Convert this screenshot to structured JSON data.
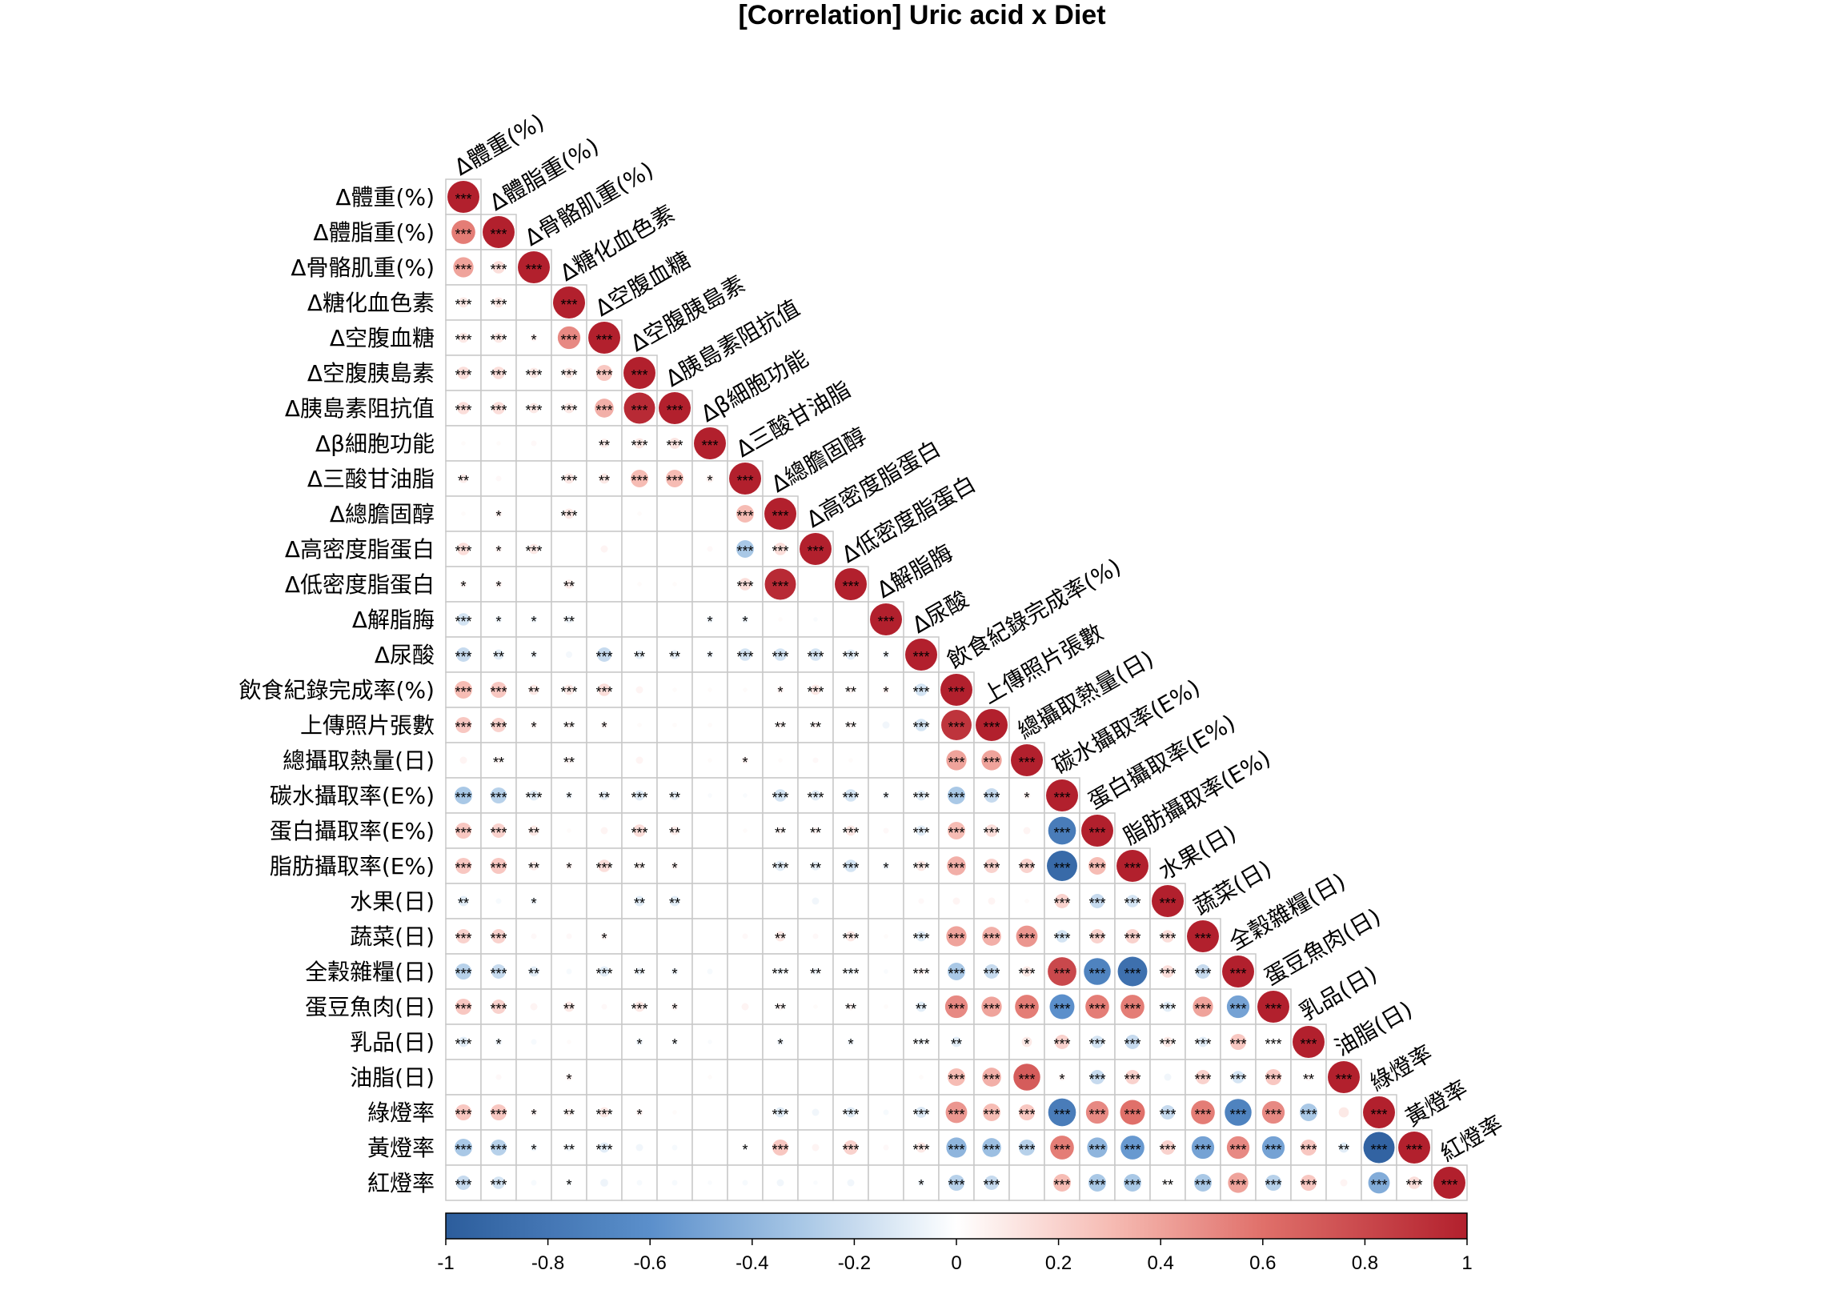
{
  "chart_data": {
    "type": "heatmap",
    "subtype": "correlation-matrix-lower-triangle",
    "title": "[Correlation] Uric acid x Diet",
    "variables": [
      "Δ體重(%)",
      "Δ體脂重(%)",
      "Δ骨骼肌重(%)",
      "Δ糖化血色素",
      "Δ空腹血糖",
      "Δ空腹胰島素",
      "Δ胰島素阻抗值",
      "Δβ細胞功能",
      "Δ三酸甘油脂",
      "Δ總膽固醇",
      "Δ高密度脂蛋白",
      "Δ低密度脂蛋白",
      "Δ解脂脢",
      "Δ尿酸",
      "飲食紀錄完成率(%)",
      "上傳照片張數",
      "總攝取熱量(日)",
      "碳水攝取率(E%)",
      "蛋白攝取率(E%)",
      "脂肪攝取率(E%)",
      "水果(日)",
      "蔬菜(日)",
      "全穀雜糧(日)",
      "蛋豆魚肉(日)",
      "乳品(日)",
      "油脂(日)",
      "綠燈率",
      "黃燈率",
      "紅燈率"
    ],
    "values": [
      [
        1.0
      ],
      [
        0.55,
        1.0
      ],
      [
        0.4,
        0.15,
        1.0
      ],
      [
        0.1,
        0.1,
        0.0,
        1.0
      ],
      [
        0.1,
        0.1,
        0.05,
        0.5,
        1.0
      ],
      [
        0.15,
        0.15,
        0.1,
        0.1,
        0.25,
        1.0
      ],
      [
        0.15,
        0.15,
        0.1,
        0.1,
        0.35,
        0.95,
        1.0
      ],
      [
        0.02,
        0.02,
        0.03,
        0.0,
        0.08,
        0.1,
        0.12,
        1.0
      ],
      [
        0.08,
        0.03,
        0.0,
        0.1,
        0.1,
        0.3,
        0.3,
        0.06,
        1.0
      ],
      [
        0.02,
        0.05,
        0.0,
        0.1,
        0.0,
        0.02,
        0.0,
        0.0,
        0.3,
        1.0
      ],
      [
        0.15,
        0.05,
        0.1,
        0.0,
        0.05,
        0.0,
        0.0,
        0.03,
        -0.3,
        0.15,
        1.0
      ],
      [
        0.05,
        0.05,
        0.0,
        0.08,
        0.0,
        0.02,
        0.02,
        0.0,
        0.15,
        0.95,
        0.0,
        1.0
      ],
      [
        -0.15,
        -0.05,
        -0.05,
        -0.06,
        0.0,
        0.0,
        0.0,
        -0.05,
        -0.05,
        0.02,
        -0.02,
        0.0,
        1.0
      ],
      [
        -0.2,
        -0.1,
        -0.05,
        -0.04,
        -0.2,
        -0.08,
        -0.08,
        -0.05,
        -0.15,
        -0.15,
        -0.15,
        -0.1,
        -0.05,
        1.0
      ],
      [
        0.3,
        0.25,
        0.1,
        0.1,
        0.15,
        0.05,
        0.02,
        0.02,
        0.02,
        0.05,
        0.1,
        0.05,
        0.05,
        -0.15,
        1.0
      ],
      [
        0.25,
        0.2,
        0.05,
        0.05,
        0.05,
        0.02,
        0.02,
        0.02,
        0.0,
        0.05,
        0.05,
        0.05,
        -0.05,
        -0.15,
        0.9,
        1.0
      ],
      [
        0.05,
        0.05,
        0.0,
        0.05,
        0.0,
        0.05,
        0.0,
        0.02,
        0.05,
        0.02,
        0.03,
        0.02,
        0.0,
        0.0,
        0.4,
        0.4,
        1.0
      ],
      [
        -0.3,
        -0.25,
        -0.1,
        -0.05,
        -0.08,
        -0.1,
        -0.08,
        -0.02,
        -0.02,
        -0.15,
        -0.1,
        -0.15,
        -0.05,
        -0.1,
        -0.3,
        -0.2,
        0.05,
        1.0
      ],
      [
        0.25,
        0.2,
        0.1,
        0.02,
        0.05,
        0.15,
        0.08,
        0.0,
        0.02,
        0.05,
        0.05,
        0.1,
        0.03,
        -0.1,
        0.3,
        0.15,
        0.05,
        -0.75,
        1.0
      ],
      [
        0.25,
        0.25,
        0.08,
        0.05,
        0.15,
        0.06,
        0.05,
        0.0,
        0.0,
        -0.1,
        -0.08,
        -0.15,
        -0.05,
        0.1,
        0.35,
        0.2,
        0.2,
        -0.9,
        0.3,
        1.0
      ],
      [
        -0.1,
        -0.03,
        -0.05,
        0.0,
        0.0,
        -0.1,
        -0.1,
        0.0,
        0.0,
        0.0,
        -0.05,
        0.0,
        0.0,
        0.03,
        0.05,
        0.05,
        0.02,
        0.2,
        -0.2,
        -0.15,
        1.0
      ],
      [
        0.2,
        0.2,
        0.03,
        0.03,
        0.05,
        0.0,
        0.0,
        0.0,
        0.03,
        0.1,
        0.03,
        0.1,
        0.02,
        -0.1,
        0.4,
        0.35,
        0.45,
        -0.15,
        0.2,
        0.2,
        0.15,
        1.0
      ],
      [
        -0.25,
        -0.2,
        -0.1,
        -0.03,
        -0.1,
        -0.06,
        -0.05,
        -0.03,
        0.0,
        -0.05,
        -0.05,
        -0.05,
        -0.02,
        0.05,
        -0.3,
        -0.2,
        0.1,
        0.8,
        -0.7,
        -0.85,
        0.15,
        -0.2,
        1.0
      ],
      [
        0.25,
        0.2,
        0.05,
        0.1,
        0.03,
        0.1,
        0.05,
        0.0,
        0.05,
        0.05,
        0.02,
        0.05,
        0.02,
        -0.1,
        0.5,
        0.4,
        0.55,
        -0.6,
        0.55,
        0.55,
        -0.1,
        0.4,
        -0.5,
        1.0
      ],
      [
        -0.1,
        -0.05,
        -0.03,
        0.02,
        0.0,
        -0.05,
        -0.03,
        -0.02,
        0.0,
        -0.05,
        0.0,
        -0.05,
        0.0,
        -0.05,
        -0.1,
        0.0,
        0.1,
        0.2,
        -0.15,
        -0.2,
        0.1,
        -0.1,
        0.25,
        0.0,
        1.0
      ],
      [
        0.0,
        0.03,
        0.0,
        0.05,
        0.0,
        0.0,
        0.0,
        0.02,
        0.0,
        0.0,
        0.0,
        0.0,
        0.0,
        0.02,
        0.3,
        0.35,
        0.7,
        0.05,
        -0.2,
        0.2,
        -0.05,
        0.2,
        -0.15,
        0.25,
        0.05,
        1.0
      ],
      [
        0.25,
        0.25,
        0.05,
        0.06,
        0.1,
        0.05,
        0.02,
        0.0,
        0.0,
        -0.1,
        -0.05,
        -0.1,
        -0.03,
        -0.12,
        0.45,
        0.3,
        0.25,
        -0.75,
        0.5,
        0.6,
        -0.2,
        0.55,
        -0.7,
        0.5,
        -0.3,
        0.1,
        1.0
      ],
      [
        -0.3,
        -0.25,
        -0.05,
        -0.05,
        -0.1,
        -0.05,
        -0.03,
        0.0,
        -0.02,
        0.25,
        0.05,
        0.2,
        0.03,
        0.1,
        -0.4,
        -0.35,
        -0.25,
        0.55,
        -0.4,
        -0.55,
        0.2,
        -0.5,
        0.5,
        -0.5,
        0.25,
        -0.1,
        -0.95,
        1.0
      ],
      [
        -0.2,
        -0.15,
        -0.03,
        -0.03,
        -0.06,
        -0.03,
        -0.03,
        -0.02,
        -0.03,
        -0.05,
        -0.02,
        -0.05,
        0.0,
        -0.05,
        -0.25,
        -0.2,
        0.0,
        0.3,
        -0.3,
        -0.3,
        0.02,
        -0.3,
        0.4,
        -0.25,
        0.25,
        0.05,
        -0.45,
        0.15,
        1.0
      ]
    ],
    "significance": [
      [
        "***"
      ],
      [
        "***",
        "***"
      ],
      [
        "***",
        "***",
        "***"
      ],
      [
        "***",
        "***",
        "",
        "***"
      ],
      [
        "***",
        "***",
        "*",
        "***",
        "***"
      ],
      [
        "***",
        "***",
        "***",
        "***",
        "***",
        "***"
      ],
      [
        "***",
        "***",
        "***",
        "***",
        "***",
        "***",
        "***"
      ],
      [
        "",
        "",
        "",
        "",
        "**",
        "***",
        "***",
        "***"
      ],
      [
        "**",
        "",
        "",
        "***",
        "**",
        "***",
        "***",
        "*",
        "***"
      ],
      [
        "",
        "*",
        "",
        "***",
        "",
        "",
        "",
        "",
        "***",
        "***"
      ],
      [
        "***",
        "*",
        "***",
        "",
        "",
        "",
        "",
        "",
        "***",
        "***",
        "***"
      ],
      [
        "*",
        "*",
        "",
        "**",
        "",
        "",
        "",
        "",
        "***",
        "***",
        "",
        "***"
      ],
      [
        "***",
        "*",
        "*",
        "**",
        "",
        "",
        "",
        "*",
        "*",
        "",
        "",
        "",
        "***"
      ],
      [
        "***",
        "**",
        "*",
        "",
        "***",
        "**",
        "**",
        "*",
        "***",
        "***",
        "***",
        "***",
        "*",
        "***"
      ],
      [
        "***",
        "***",
        "**",
        "***",
        "***",
        "",
        "",
        "",
        "",
        "*",
        "***",
        "**",
        "*",
        "***",
        "***"
      ],
      [
        "***",
        "***",
        "*",
        "**",
        "*",
        "",
        "",
        "",
        "",
        "**",
        "**",
        "**",
        "",
        "***",
        "***",
        "***"
      ],
      [
        "",
        "**",
        "",
        "**",
        "",
        "",
        "",
        "",
        "*",
        "",
        "",
        "",
        "",
        "",
        "***",
        "***",
        "***"
      ],
      [
        "***",
        "***",
        "***",
        "*",
        "**",
        "***",
        "**",
        "",
        "",
        "***",
        "***",
        "***",
        "*",
        "***",
        "***",
        "***",
        "*",
        "***"
      ],
      [
        "***",
        "***",
        "**",
        "",
        "",
        "***",
        "**",
        "",
        "",
        "**",
        "**",
        "***",
        "",
        "***",
        "***",
        "***",
        "",
        "***",
        "***"
      ],
      [
        "***",
        "***",
        "**",
        "*",
        "***",
        "**",
        "*",
        "",
        "",
        "***",
        "**",
        "***",
        "*",
        "***",
        "***",
        "***",
        "***",
        "***",
        "***",
        "***"
      ],
      [
        "**",
        "",
        "*",
        "",
        "",
        "**",
        "**",
        "",
        "",
        "",
        "",
        "",
        "",
        "",
        "",
        "",
        "",
        "***",
        "***",
        "***",
        "***"
      ],
      [
        "***",
        "***",
        "",
        "",
        "*",
        "",
        "",
        "",
        "",
        "**",
        "",
        "***",
        "",
        "***",
        "***",
        "***",
        "***",
        "***",
        "***",
        "***",
        "***",
        "***"
      ],
      [
        "***",
        "***",
        "**",
        "",
        "***",
        "**",
        "*",
        "",
        "",
        "***",
        "**",
        "***",
        "",
        "***",
        "***",
        "***",
        "***",
        "***",
        "***",
        "***",
        "***",
        "***",
        "***"
      ],
      [
        "***",
        "***",
        "",
        "**",
        "",
        "***",
        "*",
        "",
        "",
        "**",
        "",
        "**",
        "",
        "**",
        "***",
        "***",
        "***",
        "***",
        "***",
        "***",
        "***",
        "***",
        "***",
        "***"
      ],
      [
        "***",
        "*",
        "",
        "",
        "",
        "*",
        "*",
        "",
        "",
        "*",
        "",
        "*",
        "",
        "***",
        "**",
        "",
        "*",
        "***",
        "***",
        "***",
        "***",
        "***",
        "***",
        "***",
        "***"
      ],
      [
        "",
        "",
        "",
        "*",
        "",
        "",
        "",
        "",
        "",
        "",
        "",
        "",
        "",
        "",
        "***",
        "***",
        "***",
        "*",
        "***",
        "***",
        "",
        "***",
        "***",
        "***",
        "**",
        "***"
      ],
      [
        "***",
        "***",
        "*",
        "**",
        "***",
        "*",
        "",
        "",
        "",
        "***",
        "",
        "***",
        "",
        "***",
        "***",
        "***",
        "***",
        "***",
        "***",
        "***",
        "***",
        "***",
        "***",
        "***",
        "***",
        "",
        "***"
      ],
      [
        "***",
        "***",
        "*",
        "**",
        "***",
        "",
        "",
        "",
        "*",
        "***",
        "",
        "***",
        "",
        "***",
        "***",
        "***",
        "***",
        "***",
        "***",
        "***",
        "***",
        "***",
        "***",
        "***",
        "***",
        "**",
        "***",
        "***"
      ],
      [
        "***",
        "***",
        "",
        "*",
        "",
        "",
        "",
        "",
        "",
        "",
        "",
        "",
        "",
        "*",
        "***",
        "***",
        "",
        "***",
        "***",
        "***",
        "**",
        "***",
        "***",
        "***",
        "***",
        "",
        "***",
        "***",
        "***"
      ]
    ],
    "colorbar": {
      "range": [
        -1,
        1
      ],
      "ticks": [
        "-1",
        "-0.8",
        "-0.6",
        "-0.4",
        "-0.2",
        "0",
        "0.2",
        "0.4",
        "0.6",
        "0.8",
        "1"
      ],
      "colors": {
        "negative": "#2c5d9c",
        "low_negative": "#8fb7e0",
        "zero": "#ffffff",
        "low_positive": "#f4a5a1",
        "positive": "#b2202d"
      },
      "placement": "bottom"
    },
    "grid": true
  }
}
